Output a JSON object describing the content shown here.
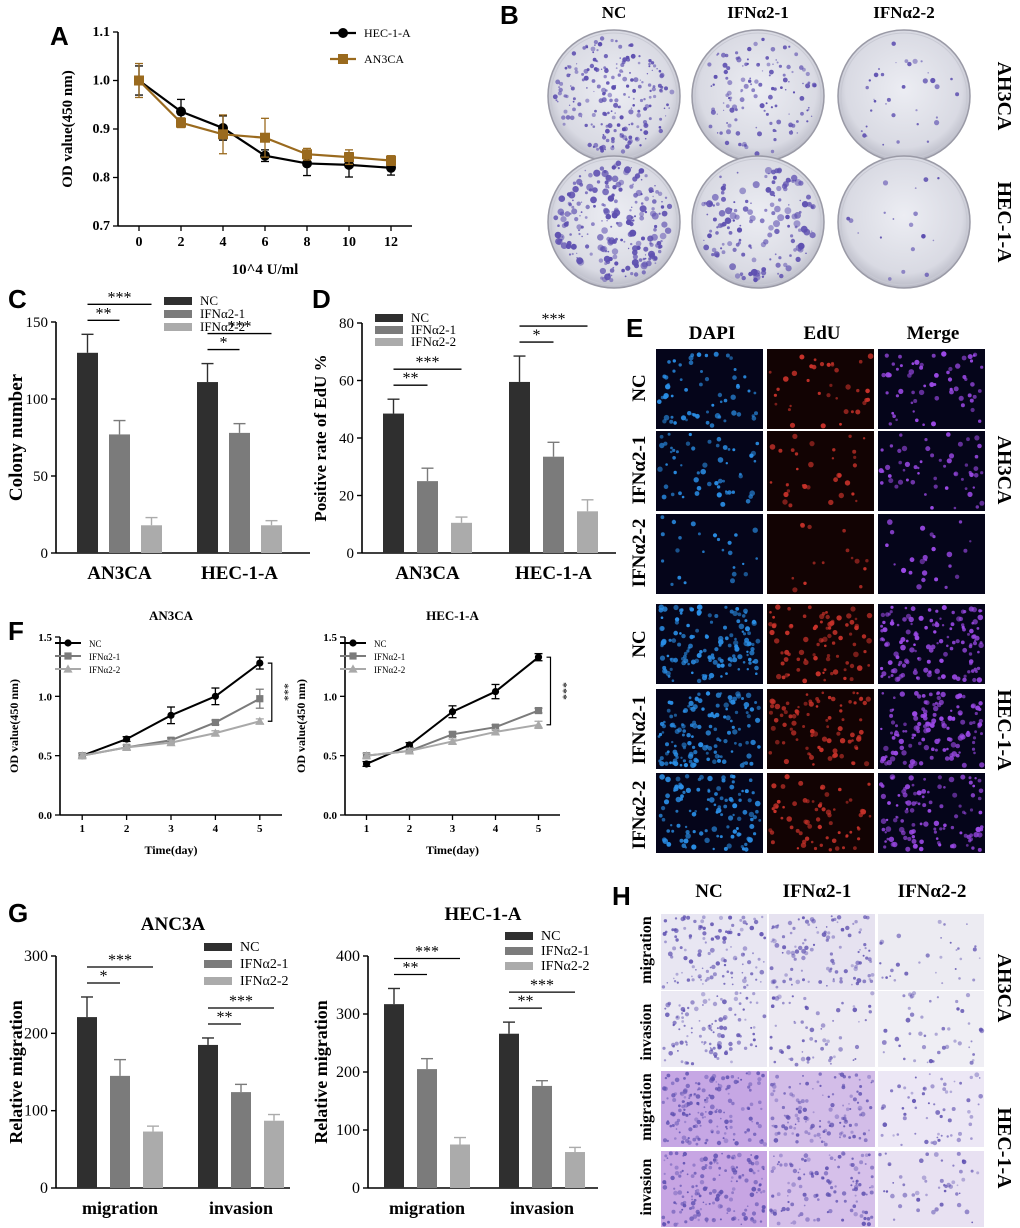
{
  "panels": {
    "A": "A",
    "B": "B",
    "C": "C",
    "D": "D",
    "E": "E",
    "F": "F",
    "G": "G",
    "H": "H"
  },
  "colors": {
    "dark": "#2f2f2f",
    "mid": "#7b7b7b",
    "light": "#ababab",
    "hec_line": "#000000",
    "an3ca_line": "#9a6a1e",
    "crystal_violet": "#5d4fb0",
    "dapi_blue": "#2a8ee6",
    "edu_red": "#c8322a",
    "merge_purple": "#9b49e6"
  },
  "chart_data": [
    {
      "id": "A",
      "type": "line",
      "xlabel": "10^4 U/ml",
      "ylabel": "OD value(450 nm)",
      "xlim": [
        -1,
        13
      ],
      "ylim": [
        0.7,
        1.1
      ],
      "x": [
        0,
        2,
        4,
        6,
        8,
        10,
        12
      ],
      "xticks": [
        "0",
        "2",
        "4",
        "6",
        "8",
        "10",
        "12"
      ],
      "yticks": [
        "0.7",
        "0.8",
        "0.9",
        "1.0",
        "1.1"
      ],
      "ytick_values": [
        0.7,
        0.8,
        0.9,
        1.0,
        1.1
      ],
      "legend": [
        "HEC-1-A",
        "AN3CA"
      ],
      "series": [
        {
          "name": "HEC-1-A",
          "values": [
            1.0,
            0.936,
            0.902,
            0.845,
            0.829,
            0.826,
            0.82
          ],
          "errors": [
            0.03,
            0.025,
            0.025,
            0.012,
            0.025,
            0.025,
            0.015
          ]
        },
        {
          "name": "AN3CA",
          "values": [
            1.0,
            0.913,
            0.889,
            0.882,
            0.848,
            0.842,
            0.835
          ],
          "errors": [
            0.035,
            0.01,
            0.04,
            0.04,
            0.012,
            0.015,
            0.01
          ]
        }
      ]
    },
    {
      "id": "C",
      "type": "bar",
      "ylabel": "Colony number",
      "ylim": [
        0,
        150
      ],
      "yticks": [
        "0",
        "50",
        "100",
        "150"
      ],
      "ytick_values": [
        0,
        50,
        100,
        150
      ],
      "categories": [
        "AN3CA",
        "HEC-1-A"
      ],
      "legend": [
        "NC",
        "IFNα2-1",
        "IFNα2-2"
      ],
      "series": [
        {
          "name": "NC",
          "values": [
            130,
            111
          ],
          "errors": [
            12,
            12
          ]
        },
        {
          "name": "IFNα2-1",
          "values": [
            77,
            78
          ],
          "errors": [
            9,
            6
          ]
        },
        {
          "name": "IFNα2-2",
          "values": [
            18,
            18
          ],
          "errors": [
            5,
            3
          ]
        }
      ],
      "significance": [
        {
          "group": 0,
          "from": 0,
          "to": 1,
          "label": "**",
          "level": 0
        },
        {
          "group": 0,
          "from": 0,
          "to": 2,
          "label": "***",
          "level": 1
        },
        {
          "group": 1,
          "from": 0,
          "to": 1,
          "label": "*",
          "level": 0
        },
        {
          "group": 1,
          "from": 0,
          "to": 2,
          "label": "***",
          "level": 1
        }
      ]
    },
    {
      "id": "D",
      "type": "bar",
      "ylabel": "Positive rate of EdU %",
      "ylim": [
        0,
        80
      ],
      "yticks": [
        "0",
        "20",
        "40",
        "60",
        "80"
      ],
      "ytick_values": [
        0,
        20,
        40,
        60,
        80
      ],
      "categories": [
        "AN3CA",
        "HEC-1-A"
      ],
      "legend": [
        "NC",
        "IFNα2-1",
        "IFNα2-2"
      ],
      "series": [
        {
          "name": "NC",
          "values": [
            48.5,
            59.5
          ],
          "errors": [
            5,
            9
          ]
        },
        {
          "name": "IFNα2-1",
          "values": [
            25,
            33.5
          ],
          "errors": [
            4.5,
            5
          ]
        },
        {
          "name": "IFNα2-2",
          "values": [
            10.5,
            14.5
          ],
          "errors": [
            2,
            4
          ]
        }
      ],
      "significance": [
        {
          "group": 0,
          "from": 0,
          "to": 1,
          "label": "**",
          "level": 0
        },
        {
          "group": 0,
          "from": 0,
          "to": 2,
          "label": "***",
          "level": 1
        },
        {
          "group": 1,
          "from": 0,
          "to": 1,
          "label": "*",
          "level": 0
        },
        {
          "group": 1,
          "from": 0,
          "to": 2,
          "label": "***",
          "level": 1
        }
      ]
    },
    {
      "id": "F1",
      "type": "line",
      "title": "AN3CA",
      "xlabel": "Time(day)",
      "ylabel": "OD value(450 nm)",
      "xlim": [
        0.5,
        5.5
      ],
      "ylim": [
        0,
        1.5
      ],
      "x": [
        1,
        2,
        3,
        4,
        5
      ],
      "xticks": [
        "1",
        "2",
        "3",
        "4",
        "5"
      ],
      "yticks": [
        "0.0",
        "0.5",
        "1.0",
        "1.5"
      ],
      "ytick_values": [
        0,
        0.5,
        1.0,
        1.5
      ],
      "legend": [
        "NC",
        "IFNα2-1",
        "IFNα2-2"
      ],
      "series": [
        {
          "name": "NC",
          "values": [
            0.5,
            0.64,
            0.84,
            1.0,
            1.28
          ],
          "errors": [
            0.02,
            0.02,
            0.07,
            0.07,
            0.05
          ]
        },
        {
          "name": "IFNα2-1",
          "values": [
            0.5,
            0.57,
            0.63,
            0.78,
            0.98
          ],
          "errors": [
            0.02,
            0.02,
            0.02,
            0.02,
            0.08
          ]
        },
        {
          "name": "IFNα2-2",
          "values": [
            0.5,
            0.57,
            0.61,
            0.69,
            0.79
          ],
          "errors": [
            0.02,
            0.02,
            0.02,
            0.02,
            0.02
          ]
        }
      ],
      "significance_label": "***"
    },
    {
      "id": "F2",
      "type": "line",
      "title": "HEC-1-A",
      "xlabel": "Time(day)",
      "ylabel": "OD value(450 nm)",
      "xlim": [
        0.5,
        5.5
      ],
      "ylim": [
        0,
        1.5
      ],
      "x": [
        1,
        2,
        3,
        4,
        5
      ],
      "xticks": [
        "1",
        "2",
        "3",
        "4",
        "5"
      ],
      "yticks": [
        "0.0",
        "0.5",
        "1.0",
        "1.5"
      ],
      "ytick_values": [
        0,
        0.5,
        1.0,
        1.5
      ],
      "legend": [
        "NC",
        "IFNα2-1",
        "IFNα2-2"
      ],
      "series": [
        {
          "name": "NC",
          "values": [
            0.43,
            0.59,
            0.87,
            1.04,
            1.33
          ],
          "errors": [
            0.02,
            0.02,
            0.05,
            0.06,
            0.03
          ]
        },
        {
          "name": "IFNα2-1",
          "values": [
            0.5,
            0.54,
            0.68,
            0.74,
            0.88
          ],
          "errors": [
            0.02,
            0.02,
            0.02,
            0.02,
            0.02
          ]
        },
        {
          "name": "IFNα2-2",
          "values": [
            0.5,
            0.54,
            0.62,
            0.7,
            0.76
          ],
          "errors": [
            0.02,
            0.02,
            0.02,
            0.02,
            0.03
          ]
        }
      ],
      "significance_label": "***"
    },
    {
      "id": "G1",
      "type": "bar",
      "title": "ANC3A",
      "ylabel": "Relative migration",
      "ylim": [
        0,
        300
      ],
      "yticks": [
        "0",
        "100",
        "200",
        "300"
      ],
      "ytick_values": [
        0,
        100,
        200,
        300
      ],
      "categories": [
        "migration",
        "invasion"
      ],
      "legend": [
        "NC",
        "IFNα2-1",
        "IFNα2-2"
      ],
      "series": [
        {
          "name": "NC",
          "values": [
            221,
            185
          ],
          "errors": [
            26,
            9
          ]
        },
        {
          "name": "IFNα2-1",
          "values": [
            145,
            124
          ],
          "errors": [
            21,
            10
          ]
        },
        {
          "name": "IFNα2-2",
          "values": [
            73,
            87
          ],
          "errors": [
            7,
            8
          ]
        }
      ],
      "significance": [
        {
          "group": 0,
          "from": 0,
          "to": 1,
          "label": "*",
          "level": 0
        },
        {
          "group": 0,
          "from": 0,
          "to": 2,
          "label": "***",
          "level": 1
        },
        {
          "group": 1,
          "from": 0,
          "to": 1,
          "label": "**",
          "level": 0
        },
        {
          "group": 1,
          "from": 0,
          "to": 2,
          "label": "***",
          "level": 1
        }
      ]
    },
    {
      "id": "G2",
      "type": "bar",
      "title": "HEC-1-A",
      "ylabel": "Relative migration",
      "ylim": [
        0,
        400
      ],
      "yticks": [
        "0",
        "100",
        "200",
        "300",
        "400"
      ],
      "ytick_values": [
        0,
        100,
        200,
        300,
        400
      ],
      "categories": [
        "migration",
        "invasion"
      ],
      "legend": [
        "NC",
        "IFNα2-1",
        "IFNα2-2"
      ],
      "series": [
        {
          "name": "NC",
          "values": [
            317,
            266
          ],
          "errors": [
            27,
            20
          ]
        },
        {
          "name": "IFNα2-1",
          "values": [
            205,
            176
          ],
          "errors": [
            18,
            9
          ]
        },
        {
          "name": "IFNα2-2",
          "values": [
            75,
            62
          ],
          "errors": [
            12,
            8
          ]
        }
      ],
      "significance": [
        {
          "group": 0,
          "from": 0,
          "to": 1,
          "label": "**",
          "level": 0
        },
        {
          "group": 0,
          "from": 0,
          "to": 2,
          "label": "***",
          "level": 1
        },
        {
          "group": 1,
          "from": 0,
          "to": 1,
          "label": "**",
          "level": 0
        },
        {
          "group": 1,
          "from": 0,
          "to": 2,
          "label": "***",
          "level": 1
        }
      ]
    }
  ],
  "panel_B": {
    "columns": [
      "NC",
      "IFNα2-1",
      "IFNα2-2"
    ],
    "rows": [
      "AH3CA",
      "HEC-1-A"
    ]
  },
  "panel_E": {
    "columns": [
      "DAPI",
      "EdU",
      "Merge"
    ],
    "rows": [
      "NC",
      "IFNα2-1",
      "IFNα2-2",
      "NC",
      "IFNα2-1",
      "IFNα2-2"
    ],
    "groups": [
      "AH3CA",
      "HEC-1-A"
    ]
  },
  "panel_H": {
    "columns": [
      "NC",
      "IFNα2-1",
      "IFNα2-2"
    ],
    "rows": [
      "migration",
      "invasion",
      "migration",
      "invasion"
    ],
    "groups": [
      "AH3CA",
      "HEC-1-A"
    ]
  }
}
